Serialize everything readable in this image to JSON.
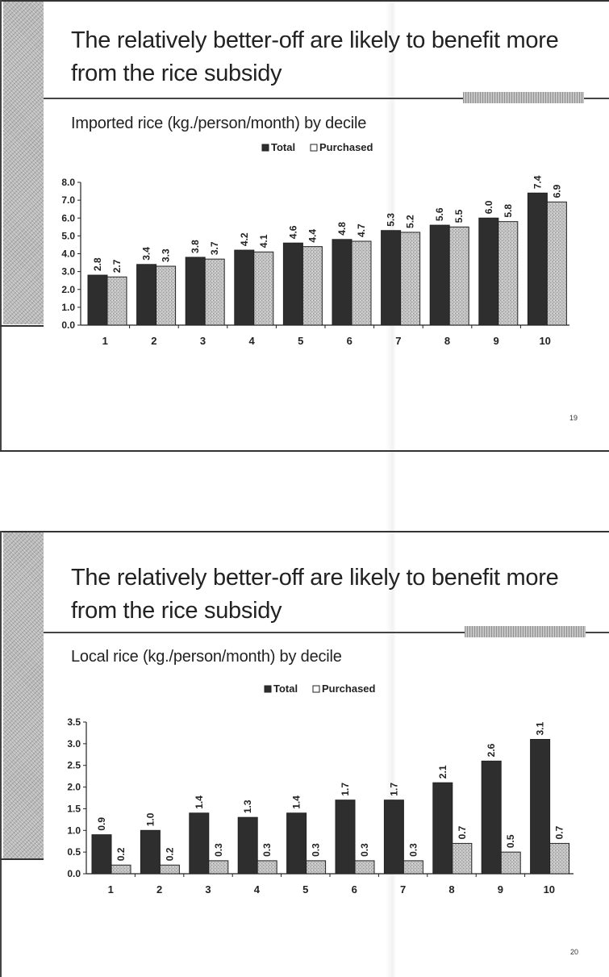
{
  "slides": [
    {
      "title_line1": "The relatively better-off are likely to benefit more",
      "title_line2": "from the rice subsidy",
      "subtitle": "Imported rice (kg./person/month) by decile",
      "page_number": "19"
    },
    {
      "title_line1": "The relatively better-off are likely to benefit more",
      "title_line2": "from the rice subsidy",
      "subtitle": "Local rice (kg./person/month) by decile",
      "page_number": "20"
    }
  ],
  "chart_data": [
    {
      "type": "bar",
      "title": "Imported rice (kg./person/month) by decile",
      "xlabel": "",
      "ylabel": "",
      "categories": [
        "1",
        "2",
        "3",
        "4",
        "5",
        "6",
        "7",
        "8",
        "9",
        "10"
      ],
      "series": [
        {
          "name": "Total",
          "values": [
            2.8,
            3.4,
            3.8,
            4.2,
            4.6,
            4.8,
            5.3,
            5.6,
            6.0,
            7.4
          ],
          "color": "#2e2e2e"
        },
        {
          "name": "Purchased",
          "values": [
            2.7,
            3.3,
            3.7,
            4.1,
            4.4,
            4.7,
            5.2,
            5.5,
            5.8,
            6.9
          ],
          "color": "#bdbdbd"
        }
      ],
      "ylim": [
        0,
        8
      ],
      "yticks": [
        "0.0",
        "1.0",
        "2.0",
        "3.0",
        "4.0",
        "5.0",
        "6.0",
        "7.0",
        "8.0"
      ],
      "legend": "top-center"
    },
    {
      "type": "bar",
      "title": "Local rice (kg./person/month) by decile",
      "xlabel": "",
      "ylabel": "",
      "categories": [
        "1",
        "2",
        "3",
        "4",
        "5",
        "6",
        "7",
        "8",
        "9",
        "10"
      ],
      "series": [
        {
          "name": "Total",
          "values": [
            0.9,
            1.0,
            1.4,
            1.3,
            1.4,
            1.7,
            1.7,
            2.1,
            2.6,
            3.1
          ],
          "color": "#2e2e2e"
        },
        {
          "name": "Purchased",
          "values": [
            0.2,
            0.2,
            0.3,
            0.3,
            0.3,
            0.3,
            0.3,
            0.7,
            0.5,
            0.7
          ],
          "color": "#bdbdbd"
        }
      ],
      "ylim": [
        0,
        3.5
      ],
      "yticks": [
        "0.0",
        "0.5",
        "1.0",
        "1.5",
        "2.0",
        "2.5",
        "3.0",
        "3.5"
      ],
      "legend": "top-center"
    }
  ]
}
